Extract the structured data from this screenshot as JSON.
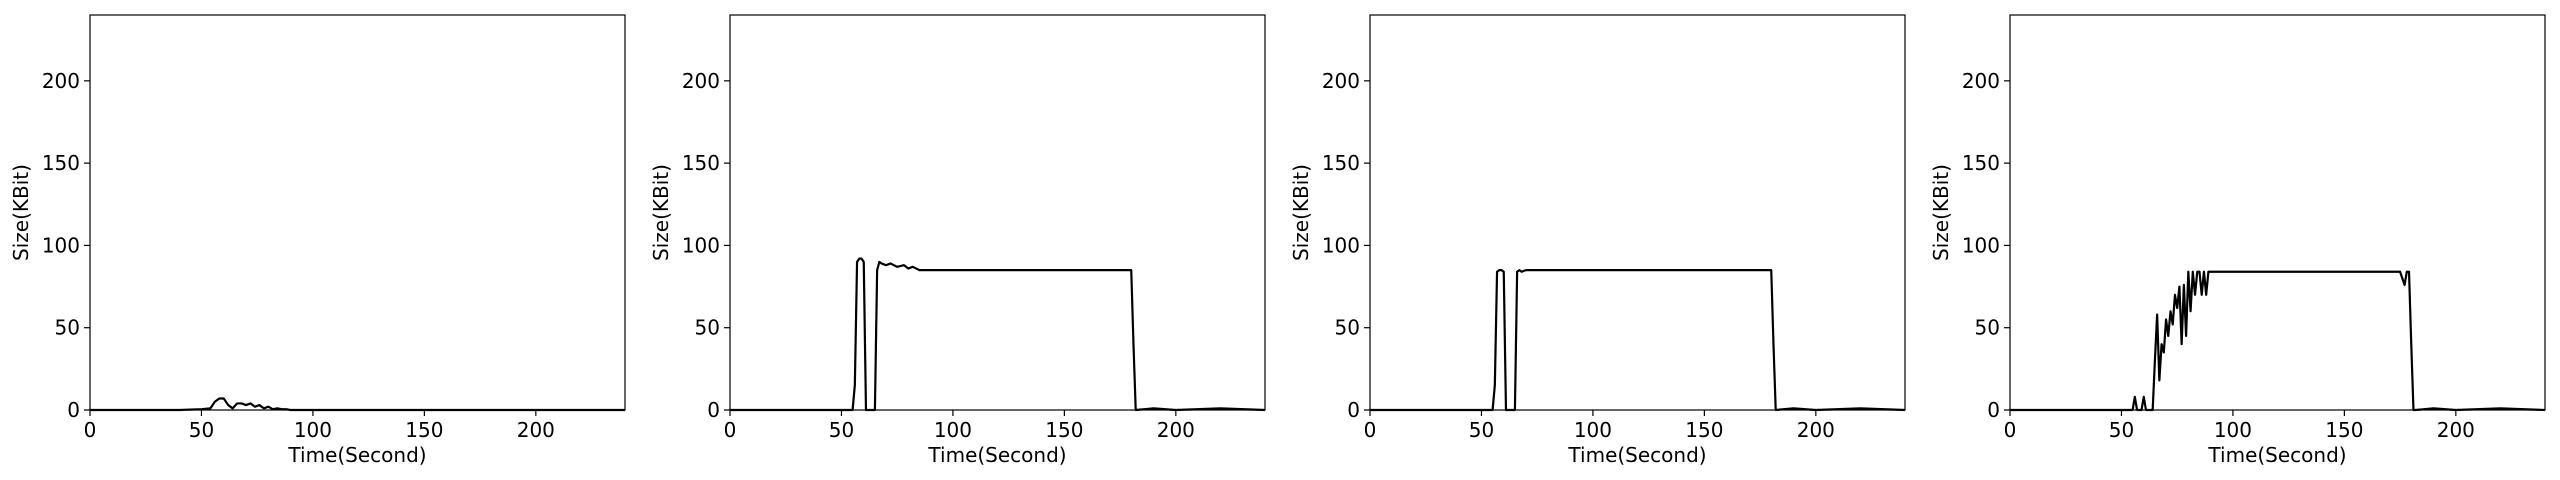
{
  "chart_data": [
    {
      "type": "line",
      "xlabel": "Time(Second)",
      "ylabel": "Size(KBit)",
      "xlim": [
        0,
        240
      ],
      "ylim": [
        0,
        240
      ],
      "xticks": [
        0,
        50,
        100,
        150,
        200
      ],
      "yticks": [
        0,
        50,
        100,
        150,
        200
      ],
      "grid": false,
      "series": [
        {
          "color": "#000000",
          "x": [
            0,
            20,
            40,
            50,
            54,
            56,
            58,
            60,
            62,
            64,
            66,
            68,
            70,
            72,
            74,
            76,
            78,
            80,
            82,
            84,
            86,
            88,
            90,
            100,
            150,
            200,
            240
          ],
          "y": [
            0,
            0,
            0,
            0.5,
            1,
            5,
            7,
            7,
            3,
            1,
            4,
            4,
            3,
            4,
            2,
            3,
            1,
            2,
            0.5,
            1,
            0.5,
            0.5,
            0,
            0,
            0,
            0,
            0
          ]
        }
      ]
    },
    {
      "type": "line",
      "xlabel": "Time(Second)",
      "ylabel": "Size(KBit)",
      "xlim": [
        0,
        240
      ],
      "ylim": [
        0,
        240
      ],
      "xticks": [
        0,
        50,
        100,
        150,
        200
      ],
      "yticks": [
        0,
        50,
        100,
        150,
        200
      ],
      "grid": false,
      "series": [
        {
          "color": "#000000",
          "x": [
            0,
            50,
            55,
            56,
            57,
            58,
            59,
            60,
            61,
            62,
            64,
            65,
            66,
            67,
            68,
            70,
            72,
            75,
            78,
            80,
            82,
            85,
            90,
            100,
            120,
            150,
            170,
            180,
            181,
            182,
            190,
            200,
            220,
            240
          ],
          "y": [
            0,
            0,
            0,
            15,
            90,
            92,
            92,
            90,
            0,
            0,
            0,
            0,
            85,
            90,
            89,
            88,
            89,
            87,
            88,
            86,
            87,
            85,
            85,
            85,
            85,
            85,
            85,
            85,
            40,
            0,
            1,
            0,
            1,
            0
          ]
        }
      ]
    },
    {
      "type": "line",
      "xlabel": "Time(Second)",
      "ylabel": "Size(KBit)",
      "xlim": [
        0,
        240
      ],
      "ylim": [
        0,
        240
      ],
      "xticks": [
        0,
        50,
        100,
        150,
        200
      ],
      "yticks": [
        0,
        50,
        100,
        150,
        200
      ],
      "grid": false,
      "series": [
        {
          "color": "#000000",
          "x": [
            0,
            50,
            55,
            56,
            57,
            58,
            59,
            60,
            61,
            62,
            64,
            65,
            66,
            67,
            68,
            70,
            80,
            100,
            120,
            150,
            170,
            180,
            181,
            182,
            190,
            200,
            220,
            240
          ],
          "y": [
            0,
            0,
            0,
            15,
            84,
            85,
            85,
            84,
            0,
            0,
            0,
            0,
            84,
            85,
            84,
            85,
            85,
            85,
            85,
            85,
            85,
            85,
            40,
            0,
            1,
            0,
            1,
            0
          ]
        }
      ]
    },
    {
      "type": "line",
      "xlabel": "Time(Second)",
      "ylabel": "Size(KBit)",
      "xlim": [
        0,
        240
      ],
      "ylim": [
        0,
        240
      ],
      "xticks": [
        0,
        50,
        100,
        150,
        200
      ],
      "yticks": [
        0,
        50,
        100,
        150,
        200
      ],
      "grid": false,
      "series": [
        {
          "color": "#000000",
          "x": [
            0,
            50,
            55,
            56,
            57,
            58,
            59,
            60,
            61,
            62,
            64,
            65,
            66,
            67,
            68,
            69,
            70,
            71,
            72,
            73,
            74,
            75,
            76,
            77,
            78,
            79,
            80,
            81,
            82,
            83,
            84,
            85,
            86,
            87,
            88,
            89,
            90,
            91,
            92,
            95,
            100,
            120,
            150,
            175,
            177,
            178,
            179,
            180,
            181,
            182,
            190,
            200,
            220,
            240
          ],
          "y": [
            0,
            0,
            0,
            8,
            0,
            0,
            0,
            8,
            0,
            0,
            0,
            30,
            58,
            18,
            40,
            35,
            55,
            45,
            60,
            52,
            70,
            62,
            75,
            40,
            76,
            45,
            84,
            60,
            84,
            70,
            84,
            84,
            70,
            84,
            70,
            84,
            84,
            84,
            84,
            84,
            84,
            84,
            84,
            84,
            76,
            84,
            84,
            40,
            0,
            0,
            1,
            0,
            1,
            0
          ]
        }
      ]
    }
  ]
}
